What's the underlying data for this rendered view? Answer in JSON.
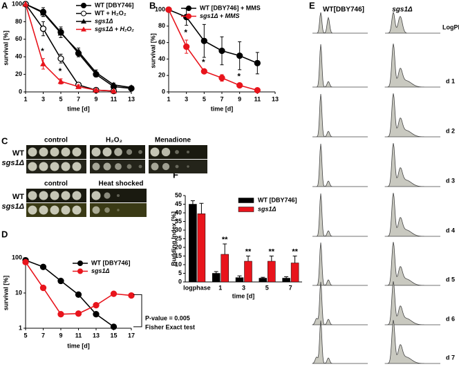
{
  "chart_data": [
    {
      "type": "line",
      "x_label": "time [d]",
      "y_label": "survival [%]",
      "x": [
        1,
        3,
        5,
        7,
        9,
        11,
        13
      ],
      "xlim": [
        1,
        13
      ],
      "xticks": [
        1,
        3,
        5,
        7,
        9,
        11,
        13
      ],
      "ylim": [
        0,
        100
      ],
      "yticks": [
        0,
        20,
        40,
        60,
        80,
        100
      ],
      "series": [
        {
          "name": "WT [DBY746]",
          "color": "#000000",
          "marker": "circle",
          "values": [
            100,
            91,
            68,
            44,
            20,
            6,
            4
          ],
          "errors": [
            0,
            5,
            6,
            4,
            3,
            2,
            1
          ]
        },
        {
          "name": "WT + H₂O₂",
          "color": "#000000",
          "marker": "open-circle",
          "values": [
            100,
            72,
            38,
            8,
            2,
            1,
            null
          ],
          "errors": [
            0,
            8,
            5,
            2,
            1,
            1,
            null
          ]
        },
        {
          "name": "sgs1Δ",
          "color": "#000000",
          "marker": "triangle",
          "values": [
            100,
            90,
            67,
            46,
            22,
            8,
            5
          ],
          "errors": [
            0,
            4,
            5,
            4,
            3,
            2,
            1
          ]
        },
        {
          "name": "sgs1Δ + H₂O₂",
          "color": "#e8141c",
          "marker": "triangle",
          "values": [
            100,
            32,
            12,
            6,
            2,
            1,
            null
          ],
          "errors": [
            0,
            6,
            3,
            2,
            1,
            1,
            null
          ],
          "significance": [
            null,
            "*",
            "*",
            null,
            null,
            null,
            null
          ]
        }
      ]
    },
    {
      "type": "line",
      "x_label": "time [d]",
      "y_label": "survival [%]",
      "x": [
        1,
        3,
        5,
        7,
        9,
        11
      ],
      "xlim": [
        1,
        13
      ],
      "xticks": [
        1,
        3,
        5,
        7,
        9,
        11,
        13
      ],
      "ylim": [
        0,
        100
      ],
      "yticks": [
        0,
        20,
        40,
        60,
        80,
        100
      ],
      "series": [
        {
          "name": "WT [DBY746] + MMS",
          "color": "#000000",
          "marker": "circle",
          "values": [
            100,
            91,
            62,
            50,
            44,
            35
          ],
          "errors": [
            0,
            10,
            20,
            17,
            17,
            13
          ]
        },
        {
          "name": "sgs1Δ + MMS",
          "color": "#e8141c",
          "marker": "circle",
          "values": [
            100,
            55,
            25,
            17,
            8,
            2
          ],
          "errors": [
            0,
            8,
            2,
            4,
            2,
            1
          ],
          "significance": [
            null,
            "*",
            "*",
            null,
            "*",
            null
          ]
        }
      ]
    },
    {
      "type": "line",
      "x_label": "time [d]",
      "y_label": "survival [%]",
      "log_y": true,
      "x": [
        5,
        7,
        9,
        11,
        13,
        15,
        17
      ],
      "xlim": [
        5,
        17
      ],
      "xticks": [
        5,
        7,
        9,
        11,
        13,
        15,
        17
      ],
      "ylim": [
        1,
        100
      ],
      "yticks": [
        1,
        10,
        100
      ],
      "series": [
        {
          "name": "WT [DBY746]",
          "color": "#000000",
          "marker": "circle",
          "values": [
            85,
            55,
            22,
            9,
            2.5,
            1.1,
            null
          ]
        },
        {
          "name": "sgs1Δ",
          "color": "#e8141c",
          "marker": "circle",
          "values": [
            75,
            14,
            2.5,
            2.6,
            4.5,
            9.5,
            8.5
          ]
        }
      ],
      "annotations": [
        "P-value = 0.005",
        "Fisher Exact test"
      ]
    },
    {
      "type": "bar",
      "x_label": "time [d]",
      "y_label": "Budding Index [%]",
      "categories": [
        "logphase",
        "1",
        "3",
        "5",
        "7"
      ],
      "ylim": [
        0,
        50
      ],
      "yticks": [
        0,
        5,
        10,
        15,
        20,
        25,
        30,
        35,
        40,
        45,
        50
      ],
      "series": [
        {
          "name": "WT [DBY746]",
          "color": "#000000",
          "values": [
            45,
            5,
            2.5,
            2.2,
            2.2
          ],
          "errors": [
            2,
            1,
            1,
            0.5,
            0.8
          ]
        },
        {
          "name": "sgs1Δ",
          "color": "#e8141c",
          "values": [
            39.5,
            16,
            12,
            12,
            11
          ],
          "errors": [
            6,
            6,
            3,
            3,
            4
          ],
          "significance": [
            null,
            "**",
            "**",
            "**",
            "**"
          ]
        }
      ]
    }
  ],
  "panel_labels": [
    "A",
    "B",
    "C",
    "D",
    "E",
    "F"
  ],
  "panel_c": {
    "rows": [
      "WT",
      "sgs1Δ"
    ],
    "columns_top": [
      "control",
      "H₂O₂",
      "Menadione"
    ],
    "columns_bottom": [
      "control",
      "Heat shocked"
    ]
  },
  "panel_e": {
    "columns": [
      "WT[DBY746]",
      "sgs1Δ"
    ],
    "rows": [
      "LogPhase",
      "d 1",
      "d 2",
      "d 3",
      "d 4",
      "d 5",
      "d 6",
      "d 7"
    ]
  }
}
